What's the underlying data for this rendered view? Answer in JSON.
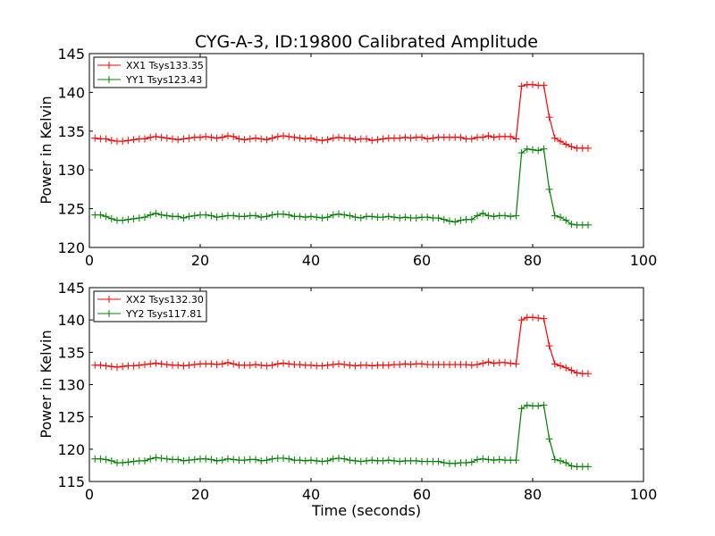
{
  "chart_data": [
    {
      "type": "line",
      "title": "CYG-A-3, ID:19800 Calibrated Amplitude",
      "xlabel": "",
      "ylabel": "Power in Kelvin",
      "xlim": [
        0,
        100
      ],
      "ylim": [
        120,
        145
      ],
      "xticks": [
        0,
        20,
        40,
        60,
        80,
        100
      ],
      "yticks": [
        120,
        125,
        130,
        135,
        140,
        145
      ],
      "legend_position": "top-left",
      "grid": false,
      "series": [
        {
          "name": "XX1 Tsys133.35",
          "color": "#ff0000",
          "x": [
            1,
            2,
            3,
            4,
            5,
            6,
            7,
            8,
            9,
            10,
            11,
            12,
            13,
            14,
            15,
            16,
            17,
            18,
            19,
            20,
            21,
            22,
            23,
            24,
            25,
            26,
            27,
            28,
            29,
            30,
            31,
            32,
            33,
            34,
            35,
            36,
            37,
            38,
            39,
            40,
            41,
            42,
            43,
            44,
            45,
            46,
            47,
            48,
            49,
            50,
            51,
            52,
            53,
            54,
            55,
            56,
            57,
            58,
            59,
            60,
            61,
            62,
            63,
            64,
            65,
            66,
            67,
            68,
            69,
            70,
            71,
            72,
            73,
            74,
            75,
            76,
            77,
            78,
            79,
            80,
            81,
            82,
            83,
            84,
            85,
            86,
            87,
            88,
            89,
            90
          ],
          "y": [
            134.1,
            134.0,
            134.0,
            133.8,
            133.7,
            133.7,
            133.8,
            133.9,
            134.0,
            134.0,
            134.2,
            134.3,
            134.2,
            134.1,
            134.0,
            133.9,
            134.0,
            134.1,
            134.2,
            134.2,
            134.3,
            134.2,
            134.1,
            134.2,
            134.4,
            134.3,
            134.0,
            133.9,
            134.0,
            134.1,
            134.0,
            133.9,
            134.1,
            134.3,
            134.4,
            134.3,
            134.2,
            134.1,
            134.0,
            134.1,
            133.9,
            133.8,
            133.9,
            134.1,
            134.2,
            134.1,
            134.1,
            133.9,
            134.0,
            134.0,
            133.8,
            133.9,
            134.0,
            134.1,
            134.1,
            134.1,
            134.2,
            134.1,
            134.2,
            134.2,
            134.0,
            134.1,
            134.2,
            134.2,
            134.2,
            134.2,
            134.2,
            134.0,
            134.0,
            134.2,
            134.2,
            134.4,
            134.2,
            134.3,
            134.3,
            134.3,
            134.0,
            140.8,
            141.0,
            141.0,
            140.9,
            140.9,
            136.8,
            134.1,
            133.7,
            133.3,
            133.0,
            132.8,
            132.8,
            132.8
          ]
        },
        {
          "name": "YY1 Tsys123.43",
          "color": "#008000",
          "x": [
            1,
            2,
            3,
            4,
            5,
            6,
            7,
            8,
            9,
            10,
            11,
            12,
            13,
            14,
            15,
            16,
            17,
            18,
            19,
            20,
            21,
            22,
            23,
            24,
            25,
            26,
            27,
            28,
            29,
            30,
            31,
            32,
            33,
            34,
            35,
            36,
            37,
            38,
            39,
            40,
            41,
            42,
            43,
            44,
            45,
            46,
            47,
            48,
            49,
            50,
            51,
            52,
            53,
            54,
            55,
            56,
            57,
            58,
            59,
            60,
            61,
            62,
            63,
            64,
            65,
            66,
            67,
            68,
            69,
            70,
            71,
            72,
            73,
            74,
            75,
            76,
            77,
            78,
            79,
            80,
            81,
            82,
            83,
            84,
            85,
            86,
            87,
            88,
            89,
            90
          ],
          "y": [
            124.2,
            124.2,
            124.0,
            123.7,
            123.5,
            123.5,
            123.6,
            123.7,
            123.8,
            123.9,
            124.2,
            124.4,
            124.2,
            124.1,
            124.0,
            124.0,
            123.8,
            124.0,
            124.1,
            124.2,
            124.2,
            124.1,
            123.9,
            124.0,
            124.1,
            124.1,
            124.0,
            124.0,
            124.1,
            124.1,
            123.9,
            124.0,
            124.2,
            124.3,
            124.3,
            124.2,
            124.0,
            124.0,
            123.9,
            124.0,
            123.9,
            123.8,
            123.9,
            124.2,
            124.3,
            124.2,
            124.1,
            123.9,
            123.8,
            124.0,
            124.0,
            123.9,
            123.9,
            124.0,
            123.9,
            123.8,
            123.9,
            123.8,
            123.8,
            123.9,
            123.9,
            123.8,
            123.8,
            123.6,
            123.4,
            123.3,
            123.5,
            123.6,
            123.6,
            124.1,
            124.4,
            124.1,
            124.0,
            124.1,
            124.1,
            124.0,
            124.1,
            132.2,
            132.7,
            132.6,
            132.5,
            132.7,
            127.5,
            124.1,
            123.9,
            123.5,
            123.0,
            122.9,
            122.9,
            122.9
          ]
        }
      ]
    },
    {
      "type": "line",
      "title": "",
      "xlabel": "Time (seconds)",
      "ylabel": "Power in Kelvin",
      "xlim": [
        0,
        100
      ],
      "ylim": [
        115,
        145
      ],
      "xticks": [
        0,
        20,
        40,
        60,
        80,
        100
      ],
      "yticks": [
        115,
        120,
        125,
        130,
        135,
        140,
        145
      ],
      "legend_position": "top-left",
      "grid": false,
      "series": [
        {
          "name": "XX2 Tsys132.30",
          "color": "#ff0000",
          "x": [
            1,
            2,
            3,
            4,
            5,
            6,
            7,
            8,
            9,
            10,
            11,
            12,
            13,
            14,
            15,
            16,
            17,
            18,
            19,
            20,
            21,
            22,
            23,
            24,
            25,
            26,
            27,
            28,
            29,
            30,
            31,
            32,
            33,
            34,
            35,
            36,
            37,
            38,
            39,
            40,
            41,
            42,
            43,
            44,
            45,
            46,
            47,
            48,
            49,
            50,
            51,
            52,
            53,
            54,
            55,
            56,
            57,
            58,
            59,
            60,
            61,
            62,
            63,
            64,
            65,
            66,
            67,
            68,
            69,
            70,
            71,
            72,
            73,
            74,
            75,
            76,
            77,
            78,
            79,
            80,
            81,
            82,
            83,
            84,
            85,
            86,
            87,
            88,
            89,
            90
          ],
          "y": [
            133.0,
            133.0,
            132.9,
            132.8,
            132.7,
            132.8,
            132.9,
            132.9,
            133.0,
            133.1,
            133.2,
            133.3,
            133.2,
            133.1,
            133.0,
            133.0,
            132.9,
            133.0,
            133.1,
            133.2,
            133.2,
            133.2,
            133.1,
            133.2,
            133.4,
            133.2,
            133.0,
            133.0,
            133.0,
            133.1,
            133.0,
            132.9,
            133.0,
            133.2,
            133.3,
            133.2,
            133.1,
            133.1,
            133.0,
            133.0,
            132.9,
            132.9,
            133.0,
            133.1,
            133.2,
            133.1,
            133.0,
            132.9,
            133.0,
            133.0,
            132.9,
            133.0,
            133.0,
            133.0,
            133.1,
            133.1,
            133.2,
            133.1,
            133.2,
            133.2,
            133.1,
            133.1,
            133.1,
            133.1,
            133.1,
            133.1,
            133.1,
            133.1,
            133.0,
            133.1,
            133.3,
            133.5,
            133.3,
            133.4,
            133.4,
            133.3,
            133.2,
            140.0,
            140.4,
            140.4,
            140.3,
            140.2,
            136.0,
            133.2,
            132.9,
            132.6,
            132.2,
            131.8,
            131.7,
            131.7
          ]
        },
        {
          "name": "YY2 Tsys117.81",
          "color": "#008000",
          "x": [
            1,
            2,
            3,
            4,
            5,
            6,
            7,
            8,
            9,
            10,
            11,
            12,
            13,
            14,
            15,
            16,
            17,
            18,
            19,
            20,
            21,
            22,
            23,
            24,
            25,
            26,
            27,
            28,
            29,
            30,
            31,
            32,
            33,
            34,
            35,
            36,
            37,
            38,
            39,
            40,
            41,
            42,
            43,
            44,
            45,
            46,
            47,
            48,
            49,
            50,
            51,
            52,
            53,
            54,
            55,
            56,
            57,
            58,
            59,
            60,
            61,
            62,
            63,
            64,
            65,
            66,
            67,
            68,
            69,
            70,
            71,
            72,
            73,
            74,
            75,
            76,
            77,
            78,
            79,
            80,
            81,
            82,
            83,
            84,
            85,
            86,
            87,
            88,
            89,
            90
          ],
          "y": [
            118.5,
            118.5,
            118.4,
            118.2,
            117.9,
            117.9,
            118.0,
            118.1,
            118.2,
            118.2,
            118.5,
            118.7,
            118.6,
            118.5,
            118.4,
            118.4,
            118.2,
            118.3,
            118.4,
            118.5,
            118.5,
            118.4,
            118.2,
            118.3,
            118.5,
            118.4,
            118.3,
            118.3,
            118.4,
            118.4,
            118.2,
            118.3,
            118.5,
            118.6,
            118.6,
            118.5,
            118.3,
            118.3,
            118.2,
            118.3,
            118.2,
            118.1,
            118.2,
            118.5,
            118.6,
            118.5,
            118.3,
            118.2,
            118.1,
            118.2,
            118.3,
            118.2,
            118.2,
            118.3,
            118.2,
            118.1,
            118.2,
            118.2,
            118.2,
            118.1,
            118.1,
            118.1,
            118.1,
            117.9,
            117.8,
            117.8,
            117.9,
            117.9,
            118.0,
            118.4,
            118.5,
            118.4,
            118.3,
            118.4,
            118.3,
            118.3,
            118.3,
            126.3,
            126.8,
            126.7,
            126.7,
            126.8,
            121.6,
            118.4,
            118.2,
            117.9,
            117.4,
            117.3,
            117.3,
            117.3
          ]
        }
      ]
    }
  ]
}
